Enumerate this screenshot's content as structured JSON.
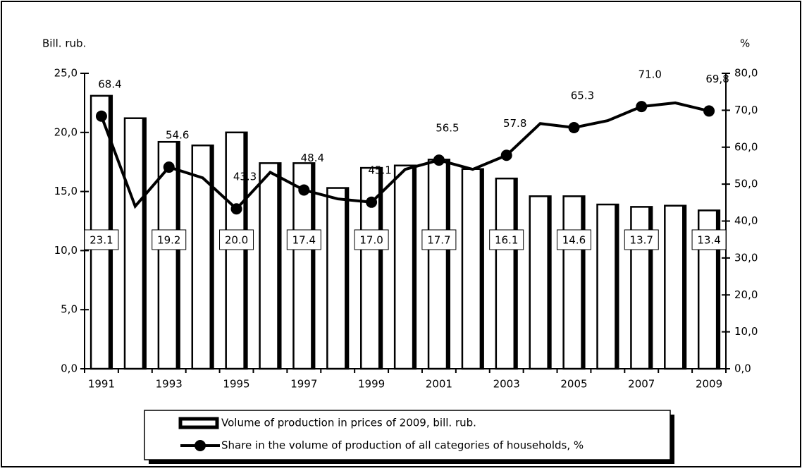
{
  "chart_data": {
    "type": "bar-line",
    "y_label": "Bill. rub.",
    "y2_label": "%",
    "categories": [
      "1991",
      null,
      "1993",
      null,
      "1995",
      null,
      "1997",
      null,
      "1999",
      null,
      "2001",
      null,
      "2003",
      null,
      "2005",
      null,
      "2007",
      null,
      "2009"
    ],
    "series": [
      {
        "name": "Volume of production in prices of 2009, bill. rub.",
        "type": "bar",
        "color": "#ffffff",
        "values": [
          23.1,
          21.2,
          19.2,
          18.9,
          20.0,
          17.4,
          17.4,
          15.3,
          17.0,
          17.2,
          17.7,
          16.9,
          16.1,
          14.6,
          14.6,
          13.9,
          13.7,
          13.8,
          13.4
        ],
        "value_labels": [
          "23.1",
          null,
          "19.2",
          null,
          "20.0",
          null,
          "17.4",
          null,
          "17.0",
          null,
          "17.7",
          null,
          "16.1",
          null,
          "14.6",
          null,
          "13.7",
          null,
          "13.4"
        ]
      },
      {
        "name": "Share in the volume of production of all categories of households, %",
        "type": "line",
        "axis": "y2",
        "color": "#000000",
        "values": [
          68.4,
          44.0,
          54.6,
          51.7,
          43.3,
          53.2,
          48.4,
          46.0,
          45.1,
          54.0,
          56.5,
          54.0,
          57.8,
          66.4,
          65.3,
          67.2,
          71.0,
          72.0,
          69.8
        ],
        "value_labels": [
          "68.4",
          null,
          "54.6",
          null,
          "43.3",
          null,
          "48.4",
          null,
          "45.1",
          null,
          "56.5",
          null,
          "57.8",
          null,
          "65.3",
          null,
          "71.0",
          null,
          "69,8"
        ]
      }
    ],
    "ylim": [
      0,
      25
    ],
    "yticks": [
      {
        "value": 0,
        "label": "0,0"
      },
      {
        "value": 5,
        "label": "5,0"
      },
      {
        "value": 10,
        "label": "10,0"
      },
      {
        "value": 15,
        "label": "15,0"
      },
      {
        "value": 20,
        "label": "20,0"
      },
      {
        "value": 25,
        "label": "25,0"
      }
    ],
    "y2lim": [
      0,
      80
    ],
    "y2ticks": [
      {
        "value": 0,
        "label": "0,0"
      },
      {
        "value": 10,
        "label": "10,0"
      },
      {
        "value": 20,
        "label": "20,0"
      },
      {
        "value": 30,
        "label": "30,0"
      },
      {
        "value": 40,
        "label": "40,0"
      },
      {
        "value": 50,
        "label": "50,0"
      },
      {
        "value": 60,
        "label": "60,0"
      },
      {
        "value": 70,
        "label": "70,0"
      },
      {
        "value": 80,
        "label": "80,0"
      }
    ],
    "grid": false
  }
}
